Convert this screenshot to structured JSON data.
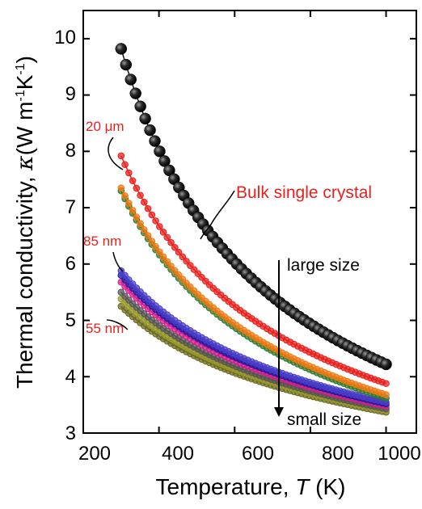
{
  "chart_data": {
    "type": "scatter",
    "xlabel_main": "Temperature,",
    "xlabel_symbol": "T",
    "xlabel_unit": "(K)",
    "ylabel_main": "Thermal conductivity,",
    "ylabel_symbol": "κ",
    "ylabel_unit_pre": "(W m",
    "ylabel_sup1": "-1",
    "ylabel_unit_mid": "K",
    "ylabel_sup2": "-1",
    "ylabel_unit_post": ")",
    "xlim": [
      200,
      1080
    ],
    "ylim": [
      3,
      10.5
    ],
    "xticks": [
      "200",
      "400",
      "600",
      "800",
      "1000"
    ],
    "yticks": [
      "3",
      "4",
      "5",
      "6",
      "7",
      "8",
      "9",
      "10"
    ],
    "grid": false,
    "annotations": {
      "bulk": "Bulk single crystal",
      "um20": "20 μm",
      "nm85": "85 nm",
      "nm55": "55 nm",
      "large": "large size",
      "small": "small size"
    },
    "series": [
      {
        "color": "#101010",
        "x": [
          300,
          1000
        ],
        "y_start": 9.82,
        "y_end": 4.22
      },
      {
        "color": "#e8211c",
        "x": [
          300,
          1000
        ],
        "y_start": 7.92,
        "y_end": 3.88
      },
      {
        "color": "#f07a14",
        "x": [
          300,
          1000
        ],
        "y_start": 7.35,
        "y_end": 3.68
      },
      {
        "color": "#2e7a2e",
        "x": [
          300,
          1000
        ],
        "y_start": 7.3,
        "y_end": 3.62
      },
      {
        "color": "#4b3fc9",
        "x": [
          300,
          1000
        ],
        "y_start": 5.88,
        "y_end": 3.55
      },
      {
        "color": "#1a1aa0",
        "x": [
          300,
          1000
        ],
        "y_start": 5.8,
        "y_end": 3.52
      },
      {
        "color": "#d81b8c",
        "x": [
          300,
          1000
        ],
        "y_start": 5.68,
        "y_end": 3.48
      },
      {
        "color": "#555555",
        "x": [
          300,
          1000
        ],
        "y_start": 5.5,
        "y_end": 3.43
      },
      {
        "color": "#9a9a2a",
        "x": [
          300,
          1000
        ],
        "y_start": 5.38,
        "y_end": 3.4
      },
      {
        "color": "#6b6b1f",
        "x": [
          300,
          1000
        ],
        "y_start": 5.25,
        "y_end": 3.37
      }
    ]
  }
}
